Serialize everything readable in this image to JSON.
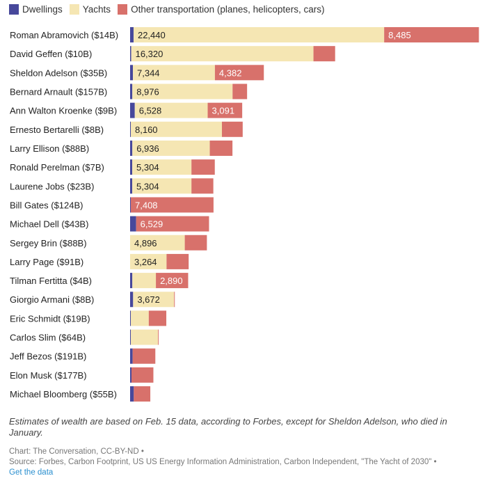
{
  "colors": {
    "dwellings": "#47489b",
    "yachts": "#f5e6b3",
    "other": "#d8716b"
  },
  "chart_data": {
    "type": "bar",
    "orientation": "horizontal",
    "stacked": true,
    "legend_position": "top-left",
    "grid": false,
    "series_names": [
      "Dwellings",
      "Yachts",
      "Other transportation (planes, helicopters, cars)"
    ],
    "categories": [
      "Roman Abramovich ($14B)",
      "David Geffen ($10B)",
      "Sheldon Adelson ($35B)",
      "Bernard Arnault ($157B)",
      "Ann Walton Kroenke ($9B)",
      "Ernesto Bertarelli ($8B)",
      "Larry Ellison ($88B)",
      "Ronald Perelman ($7B)",
      "Laurene Jobs ($23B)",
      "Bill Gates ($124B)",
      "Michael Dell ($43B)",
      "Sergey Brin ($88B)",
      "Larry Page ($91B)",
      "Tilman Fertitta ($4B)",
      "Giorgio Armani ($8B)",
      "Eric Schmidt ($19B)",
      "Carlos Slim ($64B)",
      "Jeff Bezos ($191B)",
      "Elon Musk ($177B)",
      "Michael Bloomberg ($55B)"
    ],
    "series": [
      {
        "name": "Dwellings",
        "values": [
          310,
          100,
          250,
          200,
          420,
          60,
          200,
          190,
          190,
          60,
          540,
          0,
          0,
          200,
          270,
          60,
          60,
          230,
          125,
          330
        ]
      },
      {
        "name": "Yachts",
        "values": [
          22440,
          16320,
          7344,
          8976,
          6528,
          8160,
          6936,
          5304,
          5304,
          0,
          0,
          4896,
          3264,
          2110,
          3672,
          1610,
          2440,
          0,
          0,
          0
        ]
      },
      {
        "name": "Other transportation (planes, helicopters, cars)",
        "values": [
          8485,
          1940,
          4382,
          1300,
          3091,
          1860,
          2030,
          2090,
          1960,
          7408,
          6529,
          1980,
          1980,
          2890,
          60,
          1570,
          60,
          2030,
          1960,
          1480
        ]
      }
    ],
    "data_labels": {
      "yachts": [
        "22,440",
        "16,320",
        "7,344",
        "8,976",
        "6,528",
        "8,160",
        "6,936",
        "5,304",
        "5,304",
        "",
        "",
        "4,896",
        "3,264",
        "",
        "3,672",
        "",
        "",
        "",
        "",
        ""
      ],
      "other": [
        "8,485",
        "",
        "4,382",
        "",
        "3,091",
        "",
        "",
        "",
        "",
        "7,408",
        "6,529",
        "",
        "",
        "2,890",
        "",
        "",
        "",
        "",
        "",
        ""
      ]
    }
  },
  "note": "Estimates of wealth are based on Feb. 15 data, according to Forbes, except for Sheldon Adelson, who died in January.",
  "credit": {
    "chart": "Chart: The Conversation, CC-BY-ND •",
    "source": "Source: Forbes, Carbon Footprint, US US Energy Information Administration, Carbon Independent, \"The Yacht of 2030\" •",
    "link": "Get the data"
  }
}
